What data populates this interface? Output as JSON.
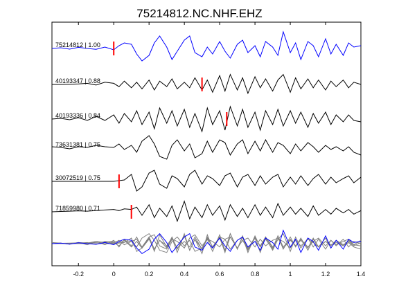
{
  "chart_data": {
    "type": "line",
    "title": "75214812.NC.NHF.EHZ",
    "xlabel": "",
    "ylabel": "",
    "xlim": [
      -0.35,
      1.4
    ],
    "xticks": [
      -0.2,
      0,
      0.2,
      0.4,
      0.6,
      0.8,
      1,
      1.2,
      1.4
    ],
    "xtick_labels": [
      "-0.2",
      "0",
      "0.2",
      "0.4",
      "0.6",
      "0.8",
      "1",
      "1.2",
      "1.4"
    ],
    "grid": false,
    "colors": {
      "primary_trace": "#0000ff",
      "other_traces": "#000000",
      "stack_traces": "#808080",
      "pick_marker": "#ff0000"
    },
    "series": [
      {
        "name": "75214812 | 1.00",
        "pick": 0.0,
        "color": "#0000ff",
        "x": [
          -0.35,
          -0.3,
          -0.25,
          -0.2,
          -0.15,
          -0.1,
          -0.05,
          0,
          0.03,
          0.06,
          0.1,
          0.13,
          0.16,
          0.2,
          0.23,
          0.26,
          0.3,
          0.33,
          0.36,
          0.4,
          0.43,
          0.46,
          0.5,
          0.53,
          0.56,
          0.6,
          0.63,
          0.66,
          0.7,
          0.73,
          0.76,
          0.8,
          0.83,
          0.86,
          0.9,
          0.93,
          0.96,
          1.0,
          1.03,
          1.06,
          1.1,
          1.13,
          1.16,
          1.2,
          1.23,
          1.26,
          1.3,
          1.33,
          1.36,
          1.4
        ],
        "y": [
          0,
          0.05,
          -0.05,
          0.08,
          0,
          -0.06,
          0.1,
          -0.1,
          0.2,
          0.4,
          0.3,
          -0.4,
          -0.9,
          -0.5,
          0.4,
          0.9,
          0.1,
          -0.8,
          -0.2,
          0.6,
          0.9,
          -0.3,
          -0.6,
          0.1,
          -0.4,
          0.5,
          -0.2,
          -0.7,
          0.3,
          0.6,
          -0.3,
          0.2,
          -0.6,
          0.5,
          0.1,
          -0.5,
          1.2,
          -0.3,
          0.4,
          -0.8,
          0.5,
          0.2,
          -0.6,
          0.7,
          -0.4,
          0.3,
          -0.5,
          0.4,
          0.1,
          0.2
        ]
      },
      {
        "name": "40193347 | 0.88",
        "pick": 0.5,
        "color": "#000000",
        "x": [
          -0.35,
          -0.3,
          -0.25,
          -0.2,
          -0.15,
          -0.1,
          -0.05,
          0,
          0.03,
          0.06,
          0.1,
          0.13,
          0.16,
          0.2,
          0.23,
          0.26,
          0.3,
          0.33,
          0.36,
          0.4,
          0.43,
          0.46,
          0.5,
          0.53,
          0.56,
          0.6,
          0.63,
          0.66,
          0.7,
          0.73,
          0.76,
          0.8,
          0.83,
          0.86,
          0.9,
          0.93,
          0.96,
          1.0,
          1.03,
          1.06,
          1.1,
          1.13,
          1.16,
          1.2,
          1.23,
          1.26,
          1.3,
          1.33,
          1.36,
          1.4
        ],
        "y": [
          0,
          0,
          0.02,
          0.05,
          0.1,
          -0.05,
          0.2,
          0.1,
          -0.2,
          0.3,
          -0.3,
          0.2,
          -0.4,
          0.4,
          -0.5,
          0.3,
          -0.2,
          0.5,
          -0.4,
          0.2,
          -0.3,
          0.6,
          -0.5,
          0.4,
          -0.7,
          0.8,
          -0.6,
          0.9,
          -0.5,
          0.6,
          -0.8,
          0.7,
          -0.3,
          0.5,
          -0.6,
          0.4,
          0.9,
          -0.7,
          0.6,
          -0.4,
          0.5,
          -0.3,
          0.4,
          -0.5,
          0.3,
          -0.2,
          0.4,
          -0.3,
          0.2,
          0
        ]
      },
      {
        "name": "40193336 | 0.84",
        "pick": 0.64,
        "color": "#000000",
        "x": [
          -0.35,
          -0.3,
          -0.25,
          -0.2,
          -0.15,
          -0.1,
          -0.05,
          0,
          0.03,
          0.06,
          0.1,
          0.13,
          0.16,
          0.2,
          0.23,
          0.26,
          0.3,
          0.33,
          0.36,
          0.4,
          0.43,
          0.46,
          0.5,
          0.53,
          0.56,
          0.6,
          0.63,
          0.66,
          0.7,
          0.73,
          0.76,
          0.8,
          0.83,
          0.86,
          0.9,
          0.93,
          0.96,
          1.0,
          1.03,
          1.06,
          1.1,
          1.13,
          1.16,
          1.2,
          1.23,
          1.26,
          1.3,
          1.33,
          1.36,
          1.4
        ],
        "y": [
          0,
          0.05,
          -0.05,
          0.1,
          -0.1,
          0.2,
          -0.1,
          0.3,
          -0.3,
          0.4,
          -0.2,
          0.6,
          -0.4,
          0.5,
          -0.7,
          0.8,
          -0.3,
          0.6,
          -0.5,
          0.7,
          -0.6,
          0.4,
          -0.9,
          0.8,
          -0.4,
          0.6,
          -0.8,
          0.9,
          -0.5,
          0.7,
          -0.6,
          0.5,
          -0.8,
          0.6,
          -0.4,
          0.7,
          -0.5,
          0.6,
          -0.3,
          0.5,
          -0.6,
          0.4,
          -0.3,
          0.5,
          -0.4,
          0.3,
          -0.2,
          0.3,
          -0.1,
          -0.2
        ]
      },
      {
        "name": "73631381 | 0.75",
        "pick": null,
        "color": "#000000",
        "x": [
          -0.35,
          -0.3,
          -0.25,
          -0.2,
          -0.15,
          -0.1,
          -0.05,
          0,
          0.03,
          0.06,
          0.1,
          0.13,
          0.16,
          0.2,
          0.23,
          0.26,
          0.3,
          0.33,
          0.36,
          0.4,
          0.43,
          0.46,
          0.5,
          0.53,
          0.56,
          0.6,
          0.63,
          0.66,
          0.7,
          0.73,
          0.76,
          0.8,
          0.83,
          0.86,
          0.9,
          0.93,
          0.96,
          1.0,
          1.03,
          1.06,
          1.1,
          1.13,
          1.16,
          1.2,
          1.23,
          1.26,
          1.3,
          1.33,
          1.36,
          1.4
        ],
        "y": [
          0.1,
          0.05,
          -0.05,
          0.1,
          0.05,
          0.2,
          0.1,
          0.05,
          0.3,
          -0.1,
          0.2,
          -0.3,
          0.5,
          0.9,
          0.3,
          -0.6,
          -0.8,
          0.2,
          0.6,
          -0.2,
          0.3,
          -0.7,
          -0.4,
          0.5,
          -0.3,
          0.6,
          0.4,
          -0.5,
          0.3,
          0.6,
          -0.4,
          0.5,
          -0.2,
          0.6,
          -0.3,
          0.4,
          0.2,
          -0.4,
          0.3,
          -0.2,
          0.4,
          0.1,
          -0.3,
          0.2,
          -0.1,
          0.1,
          -0.2,
          0.1,
          -0.3,
          -0.5
        ]
      },
      {
        "name": "30072519 | 0.75",
        "pick": 0.03,
        "color": "#000000",
        "x": [
          -0.35,
          -0.3,
          -0.25,
          -0.2,
          -0.15,
          -0.1,
          -0.05,
          0,
          0.03,
          0.06,
          0.1,
          0.13,
          0.16,
          0.2,
          0.23,
          0.26,
          0.3,
          0.33,
          0.36,
          0.4,
          0.43,
          0.46,
          0.5,
          0.53,
          0.56,
          0.6,
          0.63,
          0.66,
          0.7,
          0.73,
          0.76,
          0.8,
          0.83,
          0.86,
          0.9,
          0.93,
          0.96,
          1.0,
          1.03,
          1.06,
          1.1,
          1.13,
          1.16,
          1.2,
          1.23,
          1.26,
          1.3,
          1.33,
          1.36,
          1.4
        ],
        "y": [
          0,
          0,
          0,
          0,
          0,
          0,
          0,
          0,
          0.05,
          0.1,
          0.5,
          -0.7,
          -0.4,
          0.6,
          0.8,
          -0.2,
          -0.5,
          0.4,
          0.2,
          -0.4,
          0.5,
          0.8,
          -0.2,
          0.4,
          0.2,
          -0.3,
          0.4,
          0.6,
          -0.4,
          0.3,
          0.5,
          -0.3,
          0.4,
          -0.2,
          0.3,
          0.5,
          -0.4,
          0.3,
          -0.2,
          0.4,
          -0.3,
          0.2,
          0.5,
          -0.2,
          0.3,
          -0.1,
          0.2,
          0.4,
          -0.1,
          0.3
        ]
      },
      {
        "name": "71859980 | 0.71",
        "pick": 0.1,
        "color": "#000000",
        "x": [
          -0.35,
          -0.3,
          -0.25,
          -0.2,
          -0.15,
          -0.1,
          -0.05,
          0,
          0.03,
          0.06,
          0.1,
          0.13,
          0.16,
          0.2,
          0.23,
          0.26,
          0.3,
          0.33,
          0.36,
          0.4,
          0.43,
          0.46,
          0.5,
          0.53,
          0.56,
          0.6,
          0.63,
          0.66,
          0.7,
          0.73,
          0.76,
          0.8,
          0.83,
          0.86,
          0.9,
          0.93,
          0.96,
          1.0,
          1.03,
          1.06,
          1.1,
          1.13,
          1.16,
          1.2,
          1.23,
          1.26,
          1.3,
          1.33,
          1.36,
          1.4
        ],
        "y": [
          0,
          0.03,
          0.05,
          0.08,
          0.05,
          0.1,
          0.15,
          0.2,
          0.1,
          0.25,
          0.2,
          0.4,
          -0.3,
          0.6,
          -0.5,
          0.3,
          -0.4,
          0.5,
          -0.8,
          0.9,
          -0.6,
          0.4,
          -0.5,
          0.6,
          -0.3,
          0.5,
          -0.7,
          0.6,
          -0.4,
          0.3,
          -0.5,
          0.6,
          -0.3,
          0.4,
          -0.5,
          0.7,
          -0.3,
          0.4,
          -0.2,
          0.3,
          -0.4,
          0.5,
          -0.3,
          0.2,
          -0.2,
          0.3,
          -0.1,
          0.2,
          -0.2,
          0.1
        ]
      }
    ]
  }
}
